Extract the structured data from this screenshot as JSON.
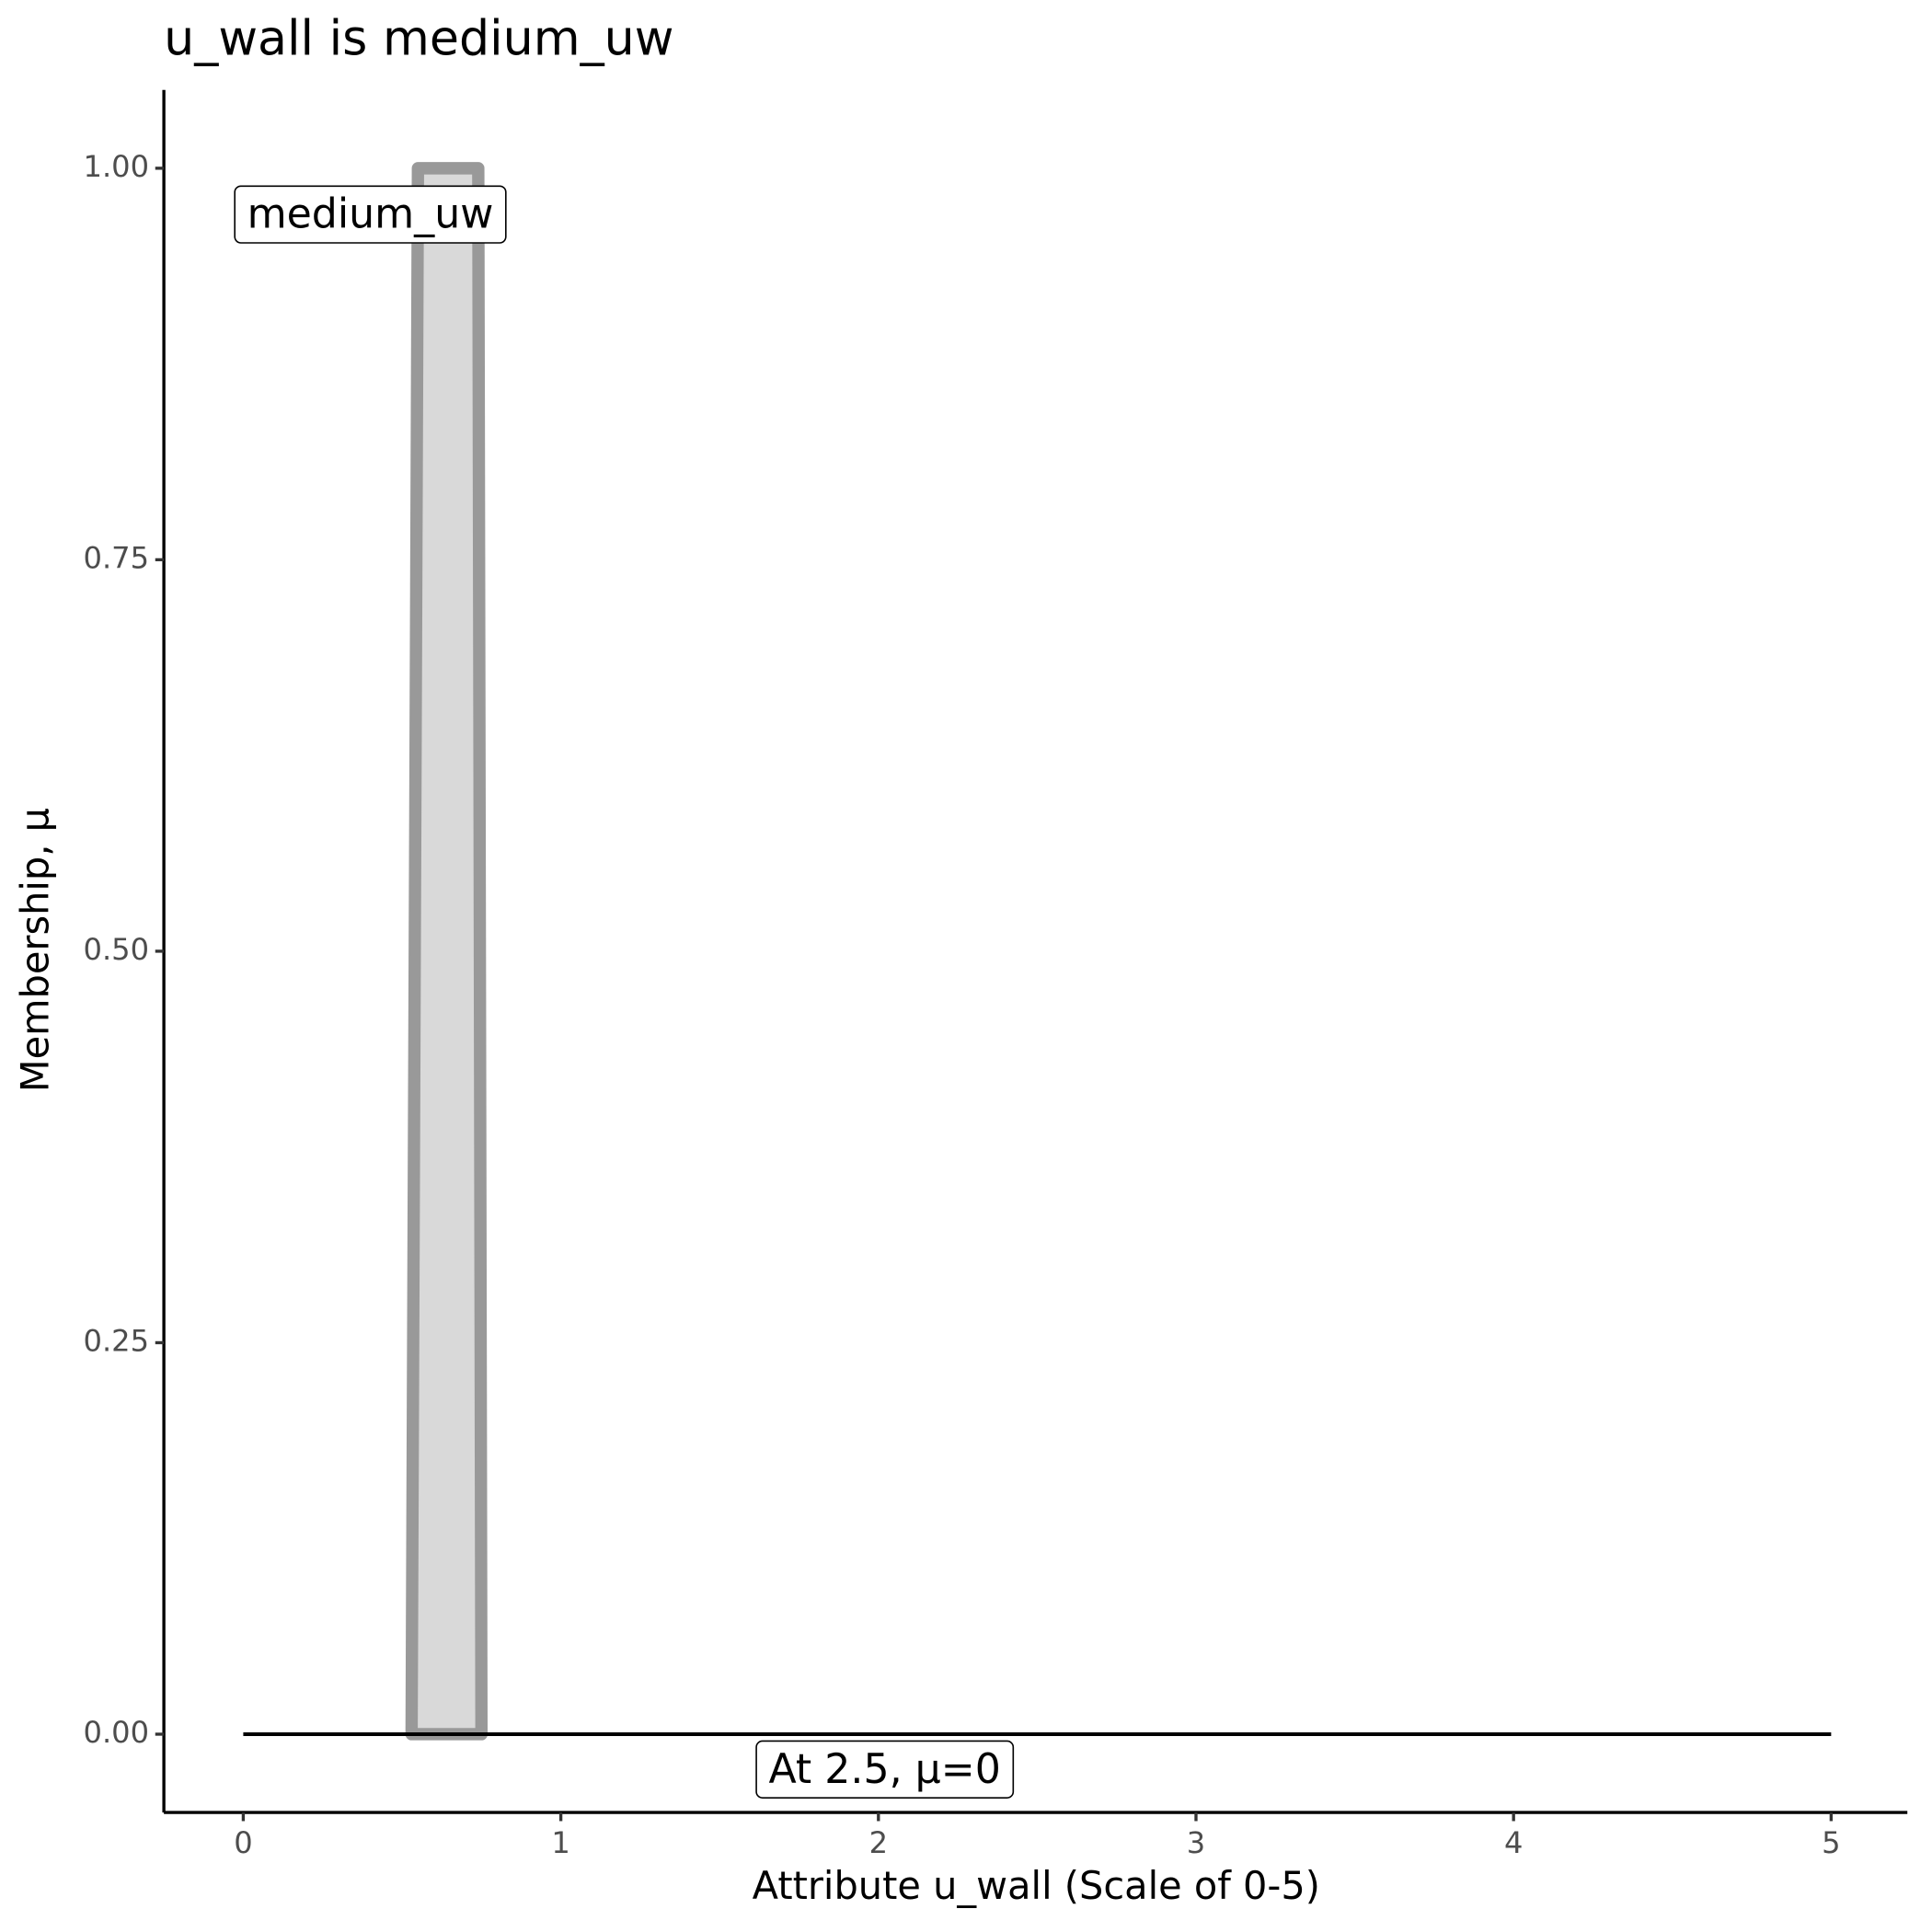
{
  "chart_data": {
    "type": "line",
    "title": "u_wall is medium_uw",
    "x_label": "Attribute u_wall (Scale of 0-5)",
    "y_label": "Membership, μ",
    "series": [
      {
        "name": "medium_uw",
        "color": "#999999",
        "fill": "#d9d9d9",
        "x": [
          0.53,
          0.55,
          0.74,
          0.75
        ],
        "values": [
          0,
          1,
          1,
          0
        ]
      },
      {
        "name": "At 2.5, μ=0",
        "color": "#000000",
        "x": [
          0,
          5
        ],
        "values": [
          0,
          0
        ]
      }
    ],
    "xlim": [
      -0.25,
      5.24
    ],
    "ylim": [
      -0.05,
      1.05
    ],
    "xticks": [
      0,
      1,
      2,
      3,
      4,
      5
    ],
    "yticks": [
      {
        "value": 0,
        "label": "0.00"
      },
      0.25,
      {
        "value": 0.5,
        "label": "0.50"
      },
      0.75,
      {
        "value": 1,
        "label": "1.00"
      }
    ],
    "grid": false
  }
}
